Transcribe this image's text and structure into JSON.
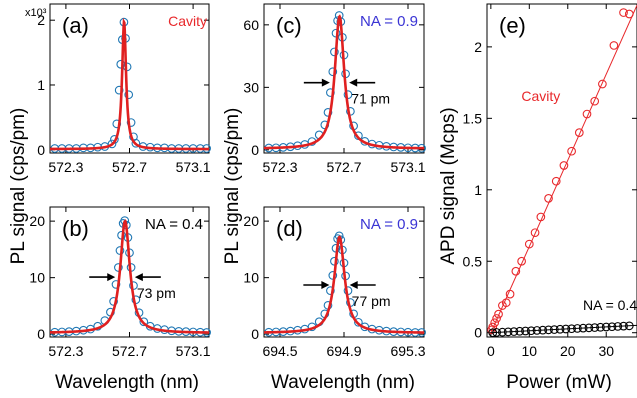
{
  "figure": {
    "ylabel_left": "PL signal (cps/pm)",
    "ylabel_middle": "PL signal (cps/pm)",
    "xlabel_left": "Wavelength (nm)",
    "xlabel_middle": "Wavelength (nm)",
    "ylabel_right": "APD signal (Mcps)",
    "xlabel_right": "Power (mW)"
  },
  "chart_data": [
    {
      "panel_label": "(a)",
      "type": "line",
      "annotation": "Cavity",
      "annotation_color": "#e8282b",
      "scale_note": "x10³",
      "xlim": [
        572.2,
        573.2
      ],
      "ylim": [
        -0.05,
        2.25
      ],
      "xticks": [
        572.3,
        572.7,
        573.1
      ],
      "yticks": [
        0,
        1,
        2
      ],
      "xtick_labels": [
        "572.3",
        "572.7",
        "573.1"
      ],
      "ytick_labels": [
        "0",
        "1",
        "2"
      ],
      "peak": {
        "center": 572.666,
        "fwhm": 0.03,
        "amplitude": 1.97,
        "baseline": 0.01
      },
      "points": {
        "x": [
          572.23,
          572.275,
          572.32,
          572.365,
          572.41,
          572.455,
          572.5,
          572.545,
          572.59,
          572.605,
          572.62,
          572.635,
          572.645,
          572.655,
          572.665,
          572.675,
          572.685,
          572.695,
          572.71,
          572.725,
          572.74,
          572.785,
          572.83,
          572.875,
          572.92,
          572.965,
          573.01,
          573.055,
          573.1,
          573.145,
          573.185
        ],
        "y": [
          0.02,
          0.02,
          0.02,
          0.02,
          0.03,
          0.03,
          0.04,
          0.05,
          0.09,
          0.16,
          0.4,
          0.92,
          1.32,
          1.7,
          1.97,
          1.72,
          1.28,
          0.85,
          0.42,
          0.2,
          0.1,
          0.05,
          0.04,
          0.03,
          0.03,
          0.02,
          0.02,
          0.02,
          0.02,
          0.02,
          0.02
        ]
      },
      "series": [
        {
          "name": "Cavity",
          "marker": "open-circle",
          "fit_color": "#e02020",
          "marker_color": "#1f77b4"
        }
      ]
    },
    {
      "panel_label": "(b)",
      "type": "line",
      "annotation": "NA = 0.4",
      "annotation_color": "#000000",
      "width_label": "73 pm",
      "xlim": [
        572.2,
        573.2
      ],
      "ylim": [
        -0.5,
        22.5
      ],
      "xticks": [
        572.3,
        572.7,
        573.1
      ],
      "yticks": [
        0,
        10,
        20
      ],
      "xtick_labels": [
        "572.3",
        "572.7",
        "573.1"
      ],
      "ytick_labels": [
        "0",
        "10",
        "20"
      ],
      "peak": {
        "center": 572.672,
        "fwhm": 0.073,
        "amplitude": 19.8,
        "baseline": 0.2
      },
      "points": {
        "x": [
          572.23,
          572.275,
          572.32,
          572.365,
          572.41,
          572.455,
          572.5,
          572.545,
          572.58,
          572.6,
          572.615,
          572.63,
          572.64,
          572.65,
          572.66,
          572.67,
          572.68,
          572.69,
          572.7,
          572.71,
          572.725,
          572.74,
          572.76,
          572.79,
          572.83,
          572.875,
          572.92,
          572.965,
          573.01,
          573.055,
          573.1,
          573.145,
          573.185
        ],
        "y": [
          0.35,
          0.4,
          0.45,
          0.55,
          0.7,
          0.9,
          1.4,
          2.4,
          3.9,
          5.8,
          8.8,
          11.8,
          14.8,
          17.5,
          19.6,
          20.1,
          19.3,
          17.1,
          14.4,
          11.8,
          8.6,
          6.1,
          3.8,
          2.2,
          1.4,
          1.0,
          0.8,
          0.6,
          0.5,
          0.45,
          0.4,
          0.35,
          0.3
        ]
      },
      "series": [
        {
          "name": "NA = 0.4",
          "marker": "open-circle",
          "fit_color": "#e02020",
          "marker_color": "#1f77b4"
        }
      ]
    },
    {
      "panel_label": "(c)",
      "type": "line",
      "annotation": "NA = 0.9",
      "annotation_color": "#3a34d4",
      "width_label": "71 pm",
      "xlim": [
        572.2,
        573.2
      ],
      "ylim": [
        -1.5,
        70
      ],
      "xticks": [
        572.3,
        572.7,
        573.1
      ],
      "yticks": [
        0,
        30,
        60
      ],
      "xtick_labels": [
        "572.3",
        "572.7",
        "573.1"
      ],
      "ytick_labels": [
        "0",
        "30",
        "60"
      ],
      "peak": {
        "center": 572.672,
        "fwhm": 0.071,
        "amplitude": 63.5,
        "baseline": 0.5
      },
      "points": {
        "x": [
          572.23,
          572.275,
          572.32,
          572.365,
          572.41,
          572.455,
          572.5,
          572.545,
          572.58,
          572.6,
          572.615,
          572.63,
          572.64,
          572.65,
          572.66,
          572.67,
          572.68,
          572.69,
          572.7,
          572.71,
          572.725,
          572.74,
          572.76,
          572.79,
          572.83,
          572.875,
          572.92,
          572.965,
          573.01,
          573.055,
          573.1,
          573.145,
          573.185
        ],
        "y": [
          0.9,
          1.0,
          1.2,
          1.5,
          2.0,
          2.6,
          4.0,
          7.2,
          12.0,
          18.0,
          27.5,
          37.5,
          47.0,
          56.0,
          62.0,
          64.5,
          61.5,
          54.0,
          45.5,
          36.5,
          26.5,
          18.5,
          11.5,
          6.8,
          4.1,
          2.8,
          2.2,
          1.7,
          1.4,
          1.2,
          1.0,
          0.9,
          0.8
        ]
      },
      "series": [
        {
          "name": "NA = 0.9",
          "marker": "open-circle",
          "fit_color": "#e02020",
          "marker_color": "#1f77b4"
        }
      ]
    },
    {
      "panel_label": "(d)",
      "type": "line",
      "annotation": "NA = 0.9",
      "annotation_color": "#3a34d4",
      "width_label": "77 pm",
      "xlim": [
        694.4,
        695.4
      ],
      "ylim": [
        -0.5,
        22.5
      ],
      "xticks": [
        694.5,
        694.9,
        695.3
      ],
      "yticks": [
        0,
        10,
        20
      ],
      "xtick_labels": [
        "694.5",
        "694.9",
        "695.3"
      ],
      "ytick_labels": [
        "0",
        "10",
        "20"
      ],
      "peak": {
        "center": 694.872,
        "fwhm": 0.077,
        "amplitude": 17.0,
        "baseline": 0.2
      },
      "points": {
        "x": [
          694.43,
          694.475,
          694.52,
          694.565,
          694.61,
          694.655,
          694.7,
          694.745,
          694.78,
          694.8,
          694.815,
          694.83,
          694.84,
          694.85,
          694.86,
          694.87,
          694.88,
          694.89,
          694.9,
          694.91,
          694.925,
          694.94,
          694.96,
          694.99,
          695.03,
          695.075,
          695.12,
          695.165,
          695.21,
          695.255,
          695.3,
          695.345,
          695.385
        ],
        "y": [
          0.35,
          0.4,
          0.45,
          0.55,
          0.7,
          0.9,
          1.3,
          2.2,
          3.6,
          5.1,
          7.7,
          10.4,
          12.9,
          15.2,
          16.9,
          17.4,
          16.7,
          14.9,
          12.6,
          10.3,
          7.7,
          5.6,
          3.6,
          2.1,
          1.3,
          0.9,
          0.7,
          0.55,
          0.45,
          0.4,
          0.35,
          0.3,
          0.3
        ]
      },
      "series": [
        {
          "name": "NA = 0.9",
          "marker": "open-circle",
          "fit_color": "#e02020",
          "marker_color": "#1f77b4"
        }
      ]
    },
    {
      "panel_label": "(e)",
      "type": "scatter",
      "xlim": [
        -1,
        38
      ],
      "ylim": [
        -0.03,
        2.3
      ],
      "xticks": [
        0,
        10,
        20,
        30
      ],
      "yticks": [
        0,
        0.5,
        1,
        1.5,
        2
      ],
      "xtick_labels": [
        "0",
        "10",
        "20",
        "30"
      ],
      "ytick_labels": [
        "0",
        "0.5",
        "1",
        "1.5",
        "2"
      ],
      "series": [
        {
          "name": "Cavity",
          "color": "#e8282b",
          "marker": "open-circle",
          "fit": {
            "slope": 0.0603,
            "intercept": 0.0
          },
          "x": [
            0.2,
            0.5,
            1,
            1.5,
            2,
            3,
            4,
            5,
            6.5,
            8,
            10,
            11.5,
            13,
            15,
            17,
            19,
            21,
            23,
            25,
            27,
            29,
            32,
            34.5,
            36
          ],
          "y": [
            0.02,
            0.04,
            0.07,
            0.1,
            0.13,
            0.19,
            0.21,
            0.27,
            0.43,
            0.5,
            0.62,
            0.7,
            0.81,
            0.94,
            1.06,
            1.17,
            1.27,
            1.4,
            1.53,
            1.62,
            1.74,
            2.01,
            2.24,
            2.23
          ]
        },
        {
          "name": "NA = 0.4",
          "color": "#000000",
          "marker": "open-circle",
          "fit": {
            "slope": 0.00135,
            "intercept": 0.0
          },
          "x": [
            0.5,
            1.5,
            3,
            4.5,
            6,
            7.5,
            9,
            10.5,
            12,
            13.5,
            15,
            16.5,
            18,
            19.5,
            21,
            22.5,
            24,
            25.5,
            27,
            28.5,
            30,
            31.5,
            33,
            34.5,
            36
          ],
          "y": [
            0.0,
            0.002,
            0.004,
            0.006,
            0.008,
            0.01,
            0.012,
            0.014,
            0.016,
            0.018,
            0.02,
            0.022,
            0.024,
            0.026,
            0.028,
            0.03,
            0.032,
            0.034,
            0.036,
            0.038,
            0.04,
            0.042,
            0.044,
            0.046,
            0.048
          ]
        }
      ]
    }
  ]
}
